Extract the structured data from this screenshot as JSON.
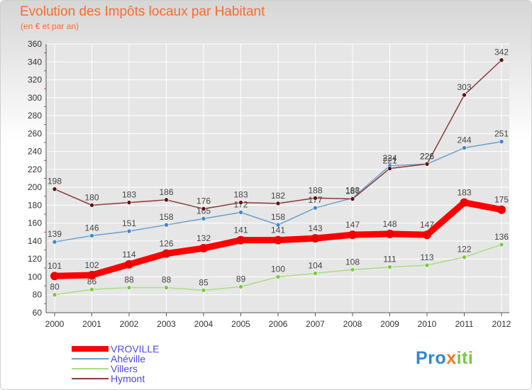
{
  "title": "Evolution des Impôts locaux par Habitant",
  "subtitle": "(en € et par an)",
  "logo": {
    "text": "Proxiti"
  },
  "colors": {
    "accent": "#ff6a2a",
    "grid": "#ffffff",
    "axis": "#555555",
    "legend_text": "#4a4ae0"
  },
  "chart_data": {
    "type": "line",
    "title": "Evolution des Impôts locaux par Habitant",
    "subtitle": "(en € et par an)",
    "xlabel": "",
    "ylabel": "",
    "x": [
      2000,
      2001,
      2002,
      2003,
      2004,
      2005,
      2006,
      2007,
      2008,
      2009,
      2010,
      2011,
      2012
    ],
    "ylim": [
      60,
      360
    ],
    "yticks": [
      60,
      80,
      100,
      120,
      140,
      160,
      180,
      200,
      220,
      240,
      260,
      280,
      300,
      320,
      340,
      360
    ],
    "grid": true,
    "legend_position": "bottom-left",
    "series": [
      {
        "name": "VROVILLE",
        "values": [
          101,
          102,
          114,
          126,
          132,
          141,
          141,
          143,
          147,
          148,
          147,
          183,
          175
        ],
        "color": "#ff0000",
        "marker": "#ee0000"
      },
      {
        "name": "Ahéville",
        "values": [
          139,
          146,
          151,
          158,
          165,
          172,
          158,
          177,
          188,
          224,
          226,
          244,
          251
        ],
        "color": "#6a9fd0",
        "marker": "#3f86d0"
      },
      {
        "name": "Villers",
        "values": [
          80,
          86,
          88,
          88,
          85,
          89,
          100,
          104,
          108,
          111,
          113,
          122,
          136
        ],
        "color": "#a8dd80",
        "marker": "#7cc843"
      },
      {
        "name": "Hymont",
        "values": [
          198,
          180,
          183,
          186,
          176,
          183,
          182,
          188,
          187,
          221,
          226,
          303,
          342
        ],
        "color": "#8b3a3a",
        "marker": "#5a1414"
      }
    ]
  }
}
